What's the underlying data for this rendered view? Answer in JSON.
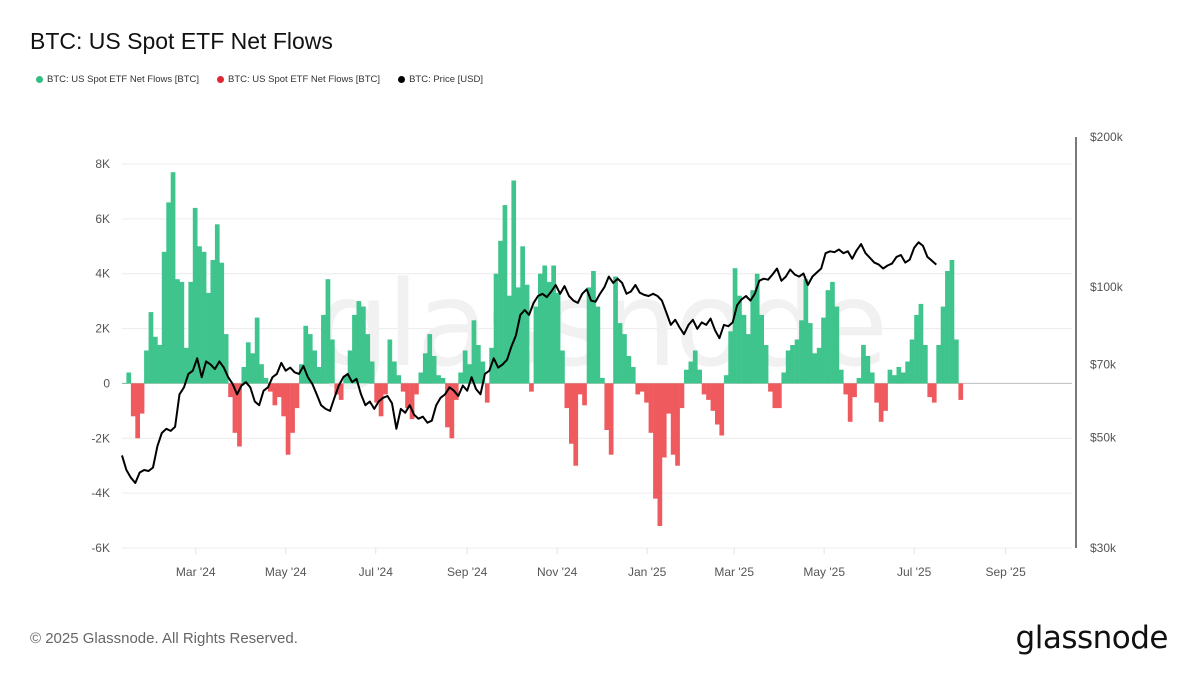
{
  "title": "BTC: US Spot ETF Net Flows",
  "legend": [
    {
      "label": "BTC: US Spot ETF Net Flows [BTC]",
      "color": "#2fbf86"
    },
    {
      "label": "BTC: US Spot ETF Net Flows [BTC]",
      "color": "#e0262e"
    },
    {
      "label": "BTC: Price [USD]",
      "color": "#000000"
    }
  ],
  "footer": "© 2025 Glassnode. All Rights Reserved.",
  "logo": "glassnode",
  "watermark": "glassnode",
  "colors": {
    "positive": "#3ec48c",
    "negative": "#ef5a5e",
    "price": "#000000",
    "grid": "#ececec"
  },
  "chart_data": {
    "type": "bar",
    "title": "BTC: US Spot ETF Net Flows",
    "xlabel": "",
    "ylabel": "",
    "x_start": "2024-01-11",
    "x_end": "2025-10-16",
    "x_ticks": [
      "Mar '24",
      "May '24",
      "Jul '24",
      "Sep '24",
      "Nov '24",
      "Jan '25",
      "Mar '25",
      "May '25",
      "Jul '25",
      "Sep '25"
    ],
    "x_tick_dates": [
      "2024-03-01",
      "2024-05-01",
      "2024-07-01",
      "2024-09-01",
      "2024-11-01",
      "2025-01-01",
      "2025-03-01",
      "2025-05-01",
      "2025-07-01",
      "2025-09-01"
    ],
    "y_left": {
      "ticks": [
        "8K",
        "6K",
        "4K",
        "2K",
        "0",
        "-2K",
        "-4K",
        "-6K"
      ],
      "tick_values": [
        8000,
        6000,
        4000,
        2000,
        0,
        -2000,
        -4000,
        -6000
      ],
      "range": [
        -6000,
        8000
      ]
    },
    "y_right": {
      "scale": "log",
      "ticks": [
        "$200k",
        "$100k",
        "$70k",
        "$50k",
        "$30k"
      ],
      "tick_values": [
        200000,
        100000,
        70000,
        50000,
        30000
      ],
      "range": [
        30000,
        200000
      ]
    },
    "grid": true,
    "legend_position": "top-left",
    "series": [
      {
        "name": "BTC: US Spot ETF Net Flows [BTC]",
        "interval_days": 3,
        "values": [
          0,
          400,
          -1200,
          -2000,
          -1100,
          1200,
          2600,
          1700,
          1400,
          4800,
          6600,
          7700,
          3800,
          3700,
          1300,
          3700,
          6400,
          5000,
          4800,
          3300,
          4500,
          5800,
          4400,
          1800,
          -500,
          -1800,
          -2300,
          600,
          1500,
          1100,
          2400,
          700,
          200,
          -300,
          -800,
          -500,
          -1200,
          -2600,
          -1800,
          -900,
          700,
          2100,
          1800,
          1200,
          600,
          2500,
          3800,
          1600,
          -400,
          -600,
          300,
          1200,
          2500,
          3000,
          2800,
          1800,
          800,
          -700,
          -1200,
          -400,
          1600,
          800,
          300,
          -300,
          -900,
          -1300,
          -400,
          400,
          1100,
          1800,
          1000,
          300,
          200,
          -1600,
          -2000,
          -600,
          400,
          1200,
          700,
          2300,
          1400,
          800,
          -700,
          1300,
          4000,
          5200,
          6500,
          3200,
          7400,
          3500,
          5000,
          3600,
          -300,
          2800,
          4000,
          4300,
          3700,
          4300,
          3300,
          1200,
          -900,
          -2200,
          -3000,
          -400,
          -800,
          3500,
          4100,
          2800,
          200,
          -1700,
          -2600,
          3900,
          2200,
          1800,
          1000,
          600,
          -400,
          -300,
          -700,
          -1800,
          -4200,
          -5200,
          -2700,
          -1100,
          -2600,
          -3000,
          -900,
          500,
          800,
          1200,
          500,
          -400,
          -600,
          -1000,
          -1500,
          -1900,
          300,
          1900,
          4200,
          3200,
          2500,
          1800,
          3400,
          4000,
          2500,
          1400,
          -300,
          -900,
          -900,
          400,
          1200,
          1400,
          1600,
          2300,
          3800,
          2200,
          1100,
          1300,
          2400,
          3400,
          3700,
          2800,
          500,
          -400,
          -1400,
          -500,
          200,
          1400,
          1000,
          400,
          -700,
          -1400,
          -1000,
          500,
          300,
          600,
          400,
          800,
          1600,
          2500,
          2900,
          1400,
          -500,
          -700,
          1400,
          2800,
          4100,
          4500,
          1600,
          -600
        ]
      },
      {
        "name": "BTC: Price [USD]",
        "interval_days": 3,
        "values": [
          46000,
          43000,
          41500,
          40500,
          42500,
          43000,
          42800,
          43500,
          48000,
          51000,
          52000,
          51500,
          52500,
          61000,
          63000,
          67000,
          68000,
          72000,
          66000,
          71000,
          70000,
          68500,
          71000,
          69000,
          66000,
          64000,
          61000,
          63500,
          64500,
          63000,
          59000,
          58000,
          62000,
          63000,
          66000,
          67000,
          70500,
          68000,
          69000,
          67500,
          67000,
          69500,
          66000,
          64000,
          61000,
          58000,
          57000,
          56500,
          60000,
          63500,
          66000,
          67000,
          64500,
          65500,
          61000,
          58000,
          59000,
          57000,
          59000,
          60000,
          60500,
          58500,
          52000,
          57000,
          56000,
          58000,
          55500,
          54500,
          55000,
          53500,
          54000,
          58000,
          60000,
          61000,
          63000,
          62000,
          60500,
          63500,
          62000,
          66000,
          62500,
          61000,
          67000,
          68000,
          72000,
          69000,
          70000,
          71500,
          76000,
          80000,
          88000,
          90000,
          88000,
          93000,
          96000,
          97000,
          95500,
          98000,
          101000,
          97000,
          100500,
          96000,
          94000,
          93000,
          97000,
          99000,
          94000,
          93500,
          97000,
          100000,
          105000,
          102000,
          104000,
          102000,
          97000,
          98000,
          101000,
          97500,
          96500,
          96000,
          97000,
          96000,
          94000,
          89000,
          84000,
          86000,
          83000,
          80500,
          84000,
          86000,
          82500,
          85000,
          84000,
          86500,
          82000,
          79000,
          84000,
          83500,
          85000,
          92000,
          94500,
          96000,
          94000,
          97000,
          103000,
          104000,
          103500,
          106000,
          109000,
          103000,
          105000,
          108500,
          106000,
          105000,
          106500,
          101000,
          105000,
          107000,
          109000,
          117000,
          118000,
          117500,
          119000,
          117000,
          118000,
          114000,
          118500,
          122000,
          117000,
          114500,
          112000,
          111000,
          109000,
          110500,
          111500,
          115000,
          116000,
          112000,
          113500,
          120000,
          123000,
          121000,
          115000,
          113000,
          111000
        ]
      }
    ]
  }
}
